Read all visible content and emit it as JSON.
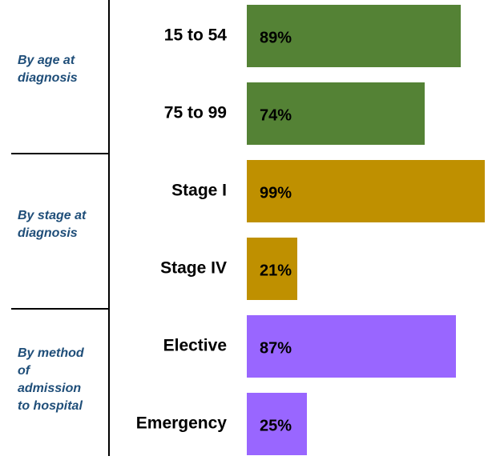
{
  "chart_data": {
    "type": "bar",
    "groups": [
      {
        "label_lines": [
          "By age at",
          "diagnosis"
        ],
        "color": "#548235",
        "categories": [
          "15 to 54",
          "75 to 99"
        ],
        "values": [
          89,
          74
        ],
        "value_labels": [
          "89%",
          "74%"
        ]
      },
      {
        "label_lines": [
          "By stage at",
          "diagnosis"
        ],
        "color": "#bf9000",
        "categories": [
          "Stage I",
          "Stage IV"
        ],
        "values": [
          99,
          21
        ],
        "value_labels": [
          "99%",
          "21%"
        ]
      },
      {
        "label_lines": [
          "By method",
          "of",
          "admission",
          "to hospital"
        ],
        "color": "#9966ff",
        "categories": [
          "Elective",
          "Emergency"
        ],
        "values": [
          87,
          25
        ],
        "value_labels": [
          "87%",
          "25%"
        ]
      }
    ]
  }
}
